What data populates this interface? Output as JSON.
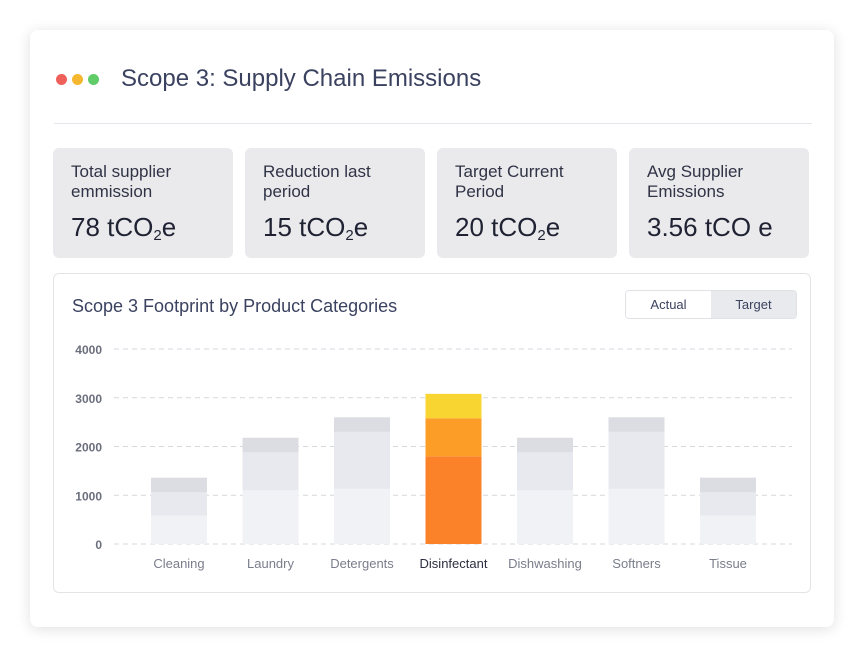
{
  "header": {
    "title": "Scope 3: Supply Chain Emissions",
    "window_dots": [
      "#f0605a",
      "#f5b730",
      "#5fcc67"
    ]
  },
  "kpis": [
    {
      "label": "Total supplier emmission",
      "value": "78 tCO",
      "sub": "2",
      "suffix": "e"
    },
    {
      "label": "Reduction last period",
      "value": "15 tCO",
      "sub": "2",
      "suffix": "e"
    },
    {
      "label": "Target Current Period",
      "value": "20 tCO",
      "sub": "2",
      "suffix": "e"
    },
    {
      "label": "Avg Supplier Emissions",
      "value": "3.56 tCO e",
      "sub": "",
      "suffix": ""
    }
  ],
  "chart_panel": {
    "title": "Scope 3 Footprint by Product Categories",
    "toggle": {
      "options": [
        "Actual",
        "Target"
      ],
      "active": "Actual"
    }
  },
  "chart_data": {
    "type": "bar",
    "stacked": true,
    "title": "Scope 3 Footprint by Product Categories",
    "categories": [
      "Cleaning",
      "Laundry",
      "Detergents",
      "Disinfectant",
      "Dishwashing",
      "Softners",
      "Tissue"
    ],
    "highlighted_category": "Disinfectant",
    "yticks": [
      0,
      1000,
      2000,
      3000,
      4000
    ],
    "ylim": [
      0,
      4000
    ],
    "grid": true,
    "series": [
      {
        "values": [
          580,
          1100,
          1130,
          1800,
          1100,
          1130,
          580
        ],
        "color": "#f1f2f5",
        "highlight_color": "#fb8228"
      },
      {
        "values": [
          480,
          780,
          1170,
          780,
          780,
          1170,
          480
        ],
        "color": "#e8e9ee",
        "highlight_color": "#fb9d26"
      },
      {
        "values": [
          300,
          300,
          300,
          500,
          300,
          300,
          300
        ],
        "color": "#dcdde3",
        "highlight_color": "#f8d531"
      }
    ]
  }
}
